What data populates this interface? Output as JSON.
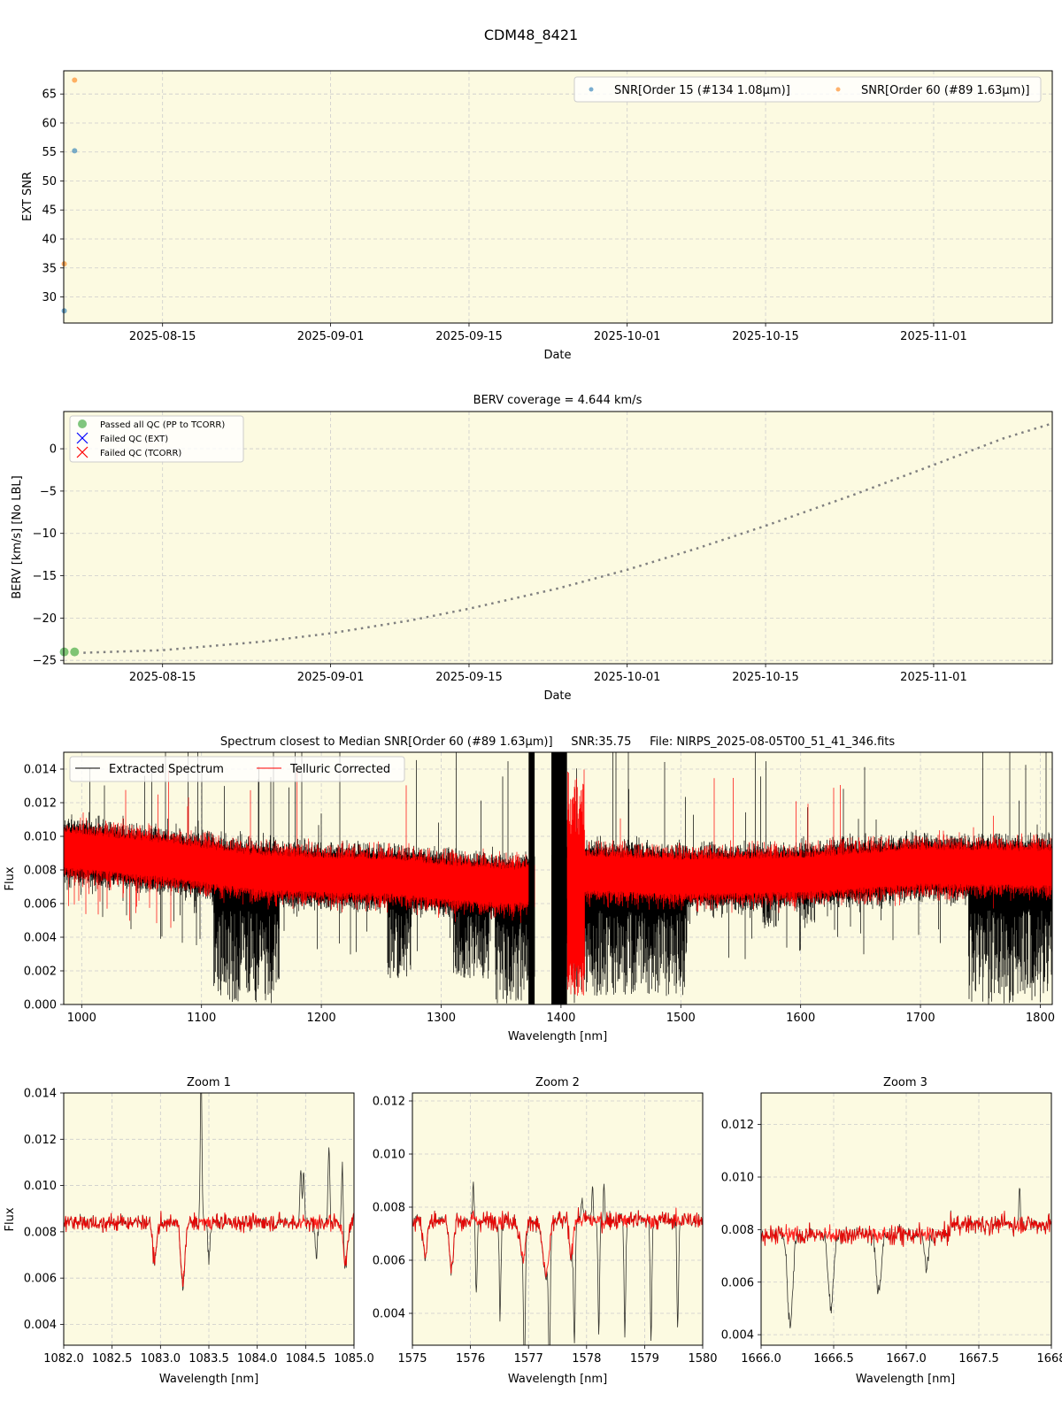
{
  "figure": {
    "title": "CDM48_8421",
    "colors": {
      "axes_bg": "#fcfae1",
      "grid": "#cccccc",
      "snr_order15": "#1f77b4",
      "snr_order60": "#ff7f0e",
      "passed": "#2ca02c",
      "failed_ext": "#0000ff",
      "failed_tcorr": "#ff0000",
      "berv_line": "#808080",
      "extracted": "#000000",
      "telluric": "#ff0000"
    }
  },
  "chart_data": [
    {
      "id": "snr",
      "type": "scatter",
      "title": "",
      "xlabel": "Date",
      "ylabel": "EXT SNR",
      "x_ticks": [
        "2025-08-15",
        "2025-09-01",
        "2025-09-15",
        "2025-10-01",
        "2025-10-15",
        "2025-11-01"
      ],
      "x_range_days": [
        0,
        100
      ],
      "x_tick_days": [
        10,
        27,
        41,
        57,
        71,
        88
      ],
      "ylim": [
        25.5,
        69
      ],
      "y_ticks": [
        30,
        35,
        40,
        45,
        50,
        55,
        60,
        65
      ],
      "grid": true,
      "legend_position": "upper right",
      "series": [
        {
          "name": "SNR[Order 15 (#134 1.08μm)]",
          "color": "#1f77b4",
          "points": [
            {
              "day": 0.05,
              "y": 27.6
            },
            {
              "day": 1.1,
              "y": 55.2
            }
          ]
        },
        {
          "name": "SNR[Order 60 (#89 1.63μm)]",
          "color": "#ff7f0e",
          "points": [
            {
              "day": 0.05,
              "y": 35.7
            },
            {
              "day": 1.1,
              "y": 67.4
            }
          ]
        }
      ]
    },
    {
      "id": "berv",
      "type": "line",
      "title": "BERV coverage = 4.644 km/s",
      "xlabel": "Date",
      "ylabel": "BERV [km/s]  [No LBL]",
      "x_ticks": [
        "2025-08-15",
        "2025-09-01",
        "2025-09-15",
        "2025-10-01",
        "2025-10-15",
        "2025-11-01"
      ],
      "x_range_days": [
        0,
        100
      ],
      "x_tick_days": [
        10,
        27,
        41,
        57,
        71,
        88
      ],
      "ylim": [
        -25.4,
        4.4
      ],
      "y_ticks": [
        0,
        -5,
        -10,
        -15,
        -20,
        -25
      ],
      "y_tick_labels": [
        "0",
        "−5",
        "−10",
        "−15",
        "−20",
        "−25"
      ],
      "grid": true,
      "legend_position": "upper left",
      "legend": [
        "Passed all QC (PP to TCORR)",
        "Failed QC (EXT)",
        "Failed QC (TCORR)"
      ],
      "berv_curve": [
        {
          "day": 2,
          "y": -24.1
        },
        {
          "day": 10,
          "y": -23.8
        },
        {
          "day": 20,
          "y": -22.8
        },
        {
          "day": 27,
          "y": -21.8
        },
        {
          "day": 35,
          "y": -20.3
        },
        {
          "day": 41,
          "y": -18.9
        },
        {
          "day": 50,
          "y": -16.5
        },
        {
          "day": 57,
          "y": -14.3
        },
        {
          "day": 64,
          "y": -11.8
        },
        {
          "day": 71,
          "y": -9.1
        },
        {
          "day": 80,
          "y": -5.4
        },
        {
          "day": 88,
          "y": -1.9
        },
        {
          "day": 95,
          "y": 1.2
        },
        {
          "day": 100,
          "y": 3.0
        }
      ],
      "passed_points": [
        {
          "day": 0.05,
          "y": -24.0
        },
        {
          "day": 1.1,
          "y": -24.0
        }
      ],
      "failed_ext_points": [],
      "failed_tcorr_points": []
    },
    {
      "id": "spectrum",
      "type": "line",
      "title": "Spectrum closest to Median SNR[Order 60 (#89 1.63μm)]     SNR:35.75     File: NIRPS_2025-08-05T00_51_41_346.fits",
      "xlabel": "Wavelength [nm]",
      "ylabel": "Flux",
      "xlim": [
        985,
        1810
      ],
      "x_ticks": [
        1000,
        1100,
        1200,
        1300,
        1400,
        1500,
        1600,
        1700,
        1800
      ],
      "ylim": [
        0,
        0.015
      ],
      "y_ticks": [
        0,
        0.002,
        0.004,
        0.006,
        0.008,
        0.01,
        0.012,
        0.014
      ],
      "y_tick_labels": [
        "0.000",
        "0.002",
        "0.004",
        "0.006",
        "0.008",
        "0.010",
        "0.012",
        "0.014"
      ],
      "grid": true,
      "legend_position": "upper left",
      "series": [
        {
          "name": "Extracted Spectrum",
          "color": "#000000"
        },
        {
          "name": "Telluric Corrected",
          "color": "#ff0000"
        }
      ],
      "telluric_continuum": [
        {
          "x": 985,
          "y": 0.0092
        },
        {
          "x": 1070,
          "y": 0.0086
        },
        {
          "x": 1100,
          "y": 0.0083
        },
        {
          "x": 1140,
          "y": 0.0079
        },
        {
          "x": 1200,
          "y": 0.0077
        },
        {
          "x": 1260,
          "y": 0.0076
        },
        {
          "x": 1300,
          "y": 0.0073
        },
        {
          "x": 1360,
          "y": 0.007
        },
        {
          "x": 1420,
          "y": 0.0078
        },
        {
          "x": 1500,
          "y": 0.0076
        },
        {
          "x": 1600,
          "y": 0.0077
        },
        {
          "x": 1700,
          "y": 0.0082
        },
        {
          "x": 1810,
          "y": 0.0081
        }
      ],
      "absorption_bands": [
        {
          "from": 1110,
          "to": 1165,
          "min": 0.0
        },
        {
          "from": 1255,
          "to": 1275,
          "min": 0.0015
        },
        {
          "from": 1310,
          "to": 1340,
          "min": 0.0015
        },
        {
          "from": 1345,
          "to": 1378,
          "min": 0.0
        },
        {
          "from": 1392,
          "to": 1413,
          "min": 0.0
        },
        {
          "from": 1413,
          "to": 1505,
          "min": 0.0005
        },
        {
          "from": 1568,
          "to": 1582,
          "min": 0.0045
        },
        {
          "from": 1600,
          "to": 1612,
          "min": 0.0045
        },
        {
          "from": 1740,
          "to": 1810,
          "min": 0.0
        }
      ],
      "gap_black_bands": [
        {
          "from": 1373,
          "to": 1378
        },
        {
          "from": 1392,
          "to": 1405
        }
      ]
    },
    {
      "id": "zoom1",
      "type": "line",
      "title": "Zoom 1",
      "xlabel": "Wavelength [nm]",
      "ylabel": "Flux",
      "xlim": [
        1082.0,
        1085.0
      ],
      "x_ticks": [
        1082.0,
        1082.5,
        1083.0,
        1083.5,
        1084.0,
        1084.5,
        1085.0
      ],
      "x_tick_labels": [
        "1082.0",
        "1082.5",
        "1083.0",
        "1083.5",
        "1084.0",
        "1084.5",
        "1085.0"
      ],
      "ylim": [
        0.0031,
        0.014
      ],
      "y_ticks": [
        0.004,
        0.006,
        0.008,
        0.01,
        0.012,
        0.014
      ],
      "y_tick_labels": [
        "0.004",
        "0.006",
        "0.008",
        "0.010",
        "0.012",
        "0.014"
      ],
      "continuum": 0.0084,
      "lines": [
        {
          "x": 1082.94,
          "depth": 0.0017,
          "w": 0.03,
          "both": true
        },
        {
          "x": 1083.23,
          "depth": 0.0027,
          "w": 0.03,
          "both": true
        },
        {
          "x": 1083.5,
          "depth": 0.0016,
          "w": 0.015,
          "both": false
        },
        {
          "x": 1084.61,
          "depth": 0.0015,
          "w": 0.015,
          "both": false
        },
        {
          "x": 1084.91,
          "depth": 0.0019,
          "w": 0.03,
          "both": true
        }
      ],
      "emission": [
        {
          "x": 1083.42,
          "height": 0.0065,
          "w": 0.012
        },
        {
          "x": 1084.45,
          "height": 0.0025,
          "w": 0.012
        },
        {
          "x": 1084.48,
          "height": 0.0021,
          "w": 0.012
        },
        {
          "x": 1084.74,
          "height": 0.0032,
          "w": 0.012
        },
        {
          "x": 1084.88,
          "height": 0.003,
          "w": 0.012
        }
      ]
    },
    {
      "id": "zoom2",
      "type": "line",
      "title": "Zoom 2",
      "xlabel": "Wavelength [nm]",
      "ylabel": "",
      "xlim": [
        1575,
        1580
      ],
      "x_ticks": [
        1575,
        1576,
        1577,
        1578,
        1579,
        1580
      ],
      "x_tick_labels": [
        "1575",
        "1576",
        "1577",
        "1578",
        "1579",
        "1580"
      ],
      "ylim": [
        0.0028,
        0.0123
      ],
      "y_ticks": [
        0.004,
        0.006,
        0.008,
        0.01,
        0.012
      ],
      "y_tick_labels": [
        "0.004",
        "0.006",
        "0.008",
        "0.010",
        "0.012"
      ],
      "continuum": 0.0075,
      "lines": [
        {
          "x": 1575.22,
          "depth": 0.0013,
          "w": 0.05,
          "both": true
        },
        {
          "x": 1575.67,
          "depth": 0.0019,
          "w": 0.05,
          "both": true
        },
        {
          "x": 1576.1,
          "depth": 0.0028,
          "w": 0.02,
          "both": false
        },
        {
          "x": 1576.51,
          "depth": 0.0036,
          "w": 0.02,
          "both": false
        },
        {
          "x": 1576.93,
          "depth": 0.0045,
          "w": 0.02,
          "both": false
        },
        {
          "x": 1576.9,
          "depth": 0.0015,
          "w": 0.07,
          "both": true
        },
        {
          "x": 1577.36,
          "depth": 0.0048,
          "w": 0.02,
          "both": false
        },
        {
          "x": 1577.3,
          "depth": 0.0021,
          "w": 0.08,
          "both": true
        },
        {
          "x": 1577.73,
          "depth": 0.0015,
          "w": 0.04,
          "both": true
        },
        {
          "x": 1577.79,
          "depth": 0.0044,
          "w": 0.02,
          "both": false
        },
        {
          "x": 1578.21,
          "depth": 0.0042,
          "w": 0.02,
          "both": false
        },
        {
          "x": 1578.66,
          "depth": 0.0043,
          "w": 0.02,
          "both": false
        },
        {
          "x": 1579.11,
          "depth": 0.0043,
          "w": 0.02,
          "both": false
        },
        {
          "x": 1579.57,
          "depth": 0.0041,
          "w": 0.02,
          "both": false
        }
      ],
      "emission": [
        {
          "x": 1576.05,
          "height": 0.0011,
          "w": 0.02
        },
        {
          "x": 1577.92,
          "height": 0.0009,
          "w": 0.02
        },
        {
          "x": 1578.1,
          "height": 0.0015,
          "w": 0.015
        },
        {
          "x": 1578.3,
          "height": 0.0017,
          "w": 0.015
        }
      ]
    },
    {
      "id": "zoom3",
      "type": "line",
      "title": "Zoom 3",
      "xlabel": "Wavelength [nm]",
      "ylabel": "",
      "xlim": [
        1666.0,
        1668.0
      ],
      "x_ticks": [
        1666.0,
        1666.5,
        1667.0,
        1667.5,
        1668.0
      ],
      "x_tick_labels": [
        "1666.0",
        "1666.5",
        "1667.0",
        "1667.5",
        "1668"
      ],
      "ylim": [
        0.0036,
        0.0132
      ],
      "y_ticks": [
        0.004,
        0.006,
        0.008,
        0.01,
        0.012
      ],
      "y_tick_labels": [
        "0.004",
        "0.006",
        "0.008",
        "0.010",
        "0.012"
      ],
      "continuum": 0.0078,
      "lines": [
        {
          "x": 1666.2,
          "depth": 0.0035,
          "w": 0.025,
          "both": false
        },
        {
          "x": 1666.48,
          "depth": 0.0028,
          "w": 0.025,
          "both": false
        },
        {
          "x": 1666.81,
          "depth": 0.0021,
          "w": 0.025,
          "both": false
        },
        {
          "x": 1667.14,
          "depth": 0.0012,
          "w": 0.02,
          "both": false
        }
      ],
      "emission": [
        {
          "x": 1667.78,
          "height": 0.0016,
          "w": 0.006
        }
      ]
    }
  ]
}
